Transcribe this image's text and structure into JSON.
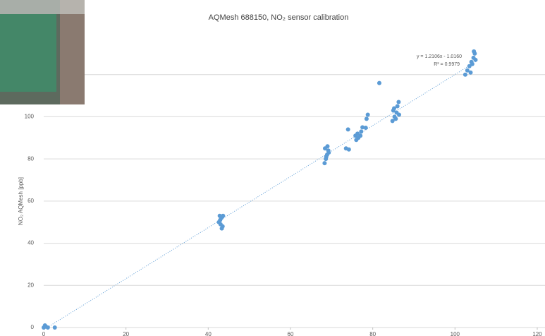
{
  "chart_data": {
    "type": "scatter",
    "title": "AQMesh 688150, NO₂ sensor calibration",
    "y_label": "NO₂ AQMesh [ppb]",
    "xlim": [
      0,
      120
    ],
    "xticks": [
      0,
      20,
      40,
      60,
      80,
      100,
      120
    ],
    "ylim": [
      0,
      140
    ],
    "yticks": [
      0,
      20,
      40,
      60,
      80,
      100,
      120
    ],
    "grid": true,
    "series": [
      {
        "color": "#5b9bd5",
        "x": [
          0,
          0.3,
          0.5,
          1,
          2.7,
          42.8,
          43.2,
          42.6,
          43,
          43.5,
          43.3,
          42.9,
          43.6,
          68.3,
          68.6,
          68.9,
          69.2,
          68.4,
          69,
          68.7,
          69.3,
          73.5,
          74.2,
          74,
          76,
          76.5,
          77,
          76.3,
          77.2,
          75.8,
          77.5,
          78.5,
          78.8,
          78.3,
          81.6,
          84.8,
          85.3,
          85.8,
          85.2,
          86,
          86.3,
          85.6,
          86.4,
          85,
          102.5,
          103,
          103.5,
          104,
          104.5,
          104.8,
          105,
          104.2,
          103.8,
          104.6
        ],
        "values": [
          0,
          1,
          0.5,
          0,
          0,
          53,
          52,
          50,
          49,
          48,
          47,
          51,
          53,
          78,
          80,
          82,
          84,
          85,
          86,
          81,
          83,
          85,
          84.5,
          94,
          89,
          90,
          91,
          92,
          93,
          91,
          95,
          99,
          101,
          94.8,
          116,
          98,
          100,
          102,
          104,
          105,
          107,
          99,
          101,
          103,
          120,
          122,
          124,
          126,
          128,
          130,
          127,
          125,
          121,
          131
        ]
      }
    ],
    "trendline": {
      "slope": 1.2106,
      "intercept": -1.016,
      "label": "y = 1.2106x - 1.0160",
      "r2_label": "R² = 0.9979"
    }
  }
}
